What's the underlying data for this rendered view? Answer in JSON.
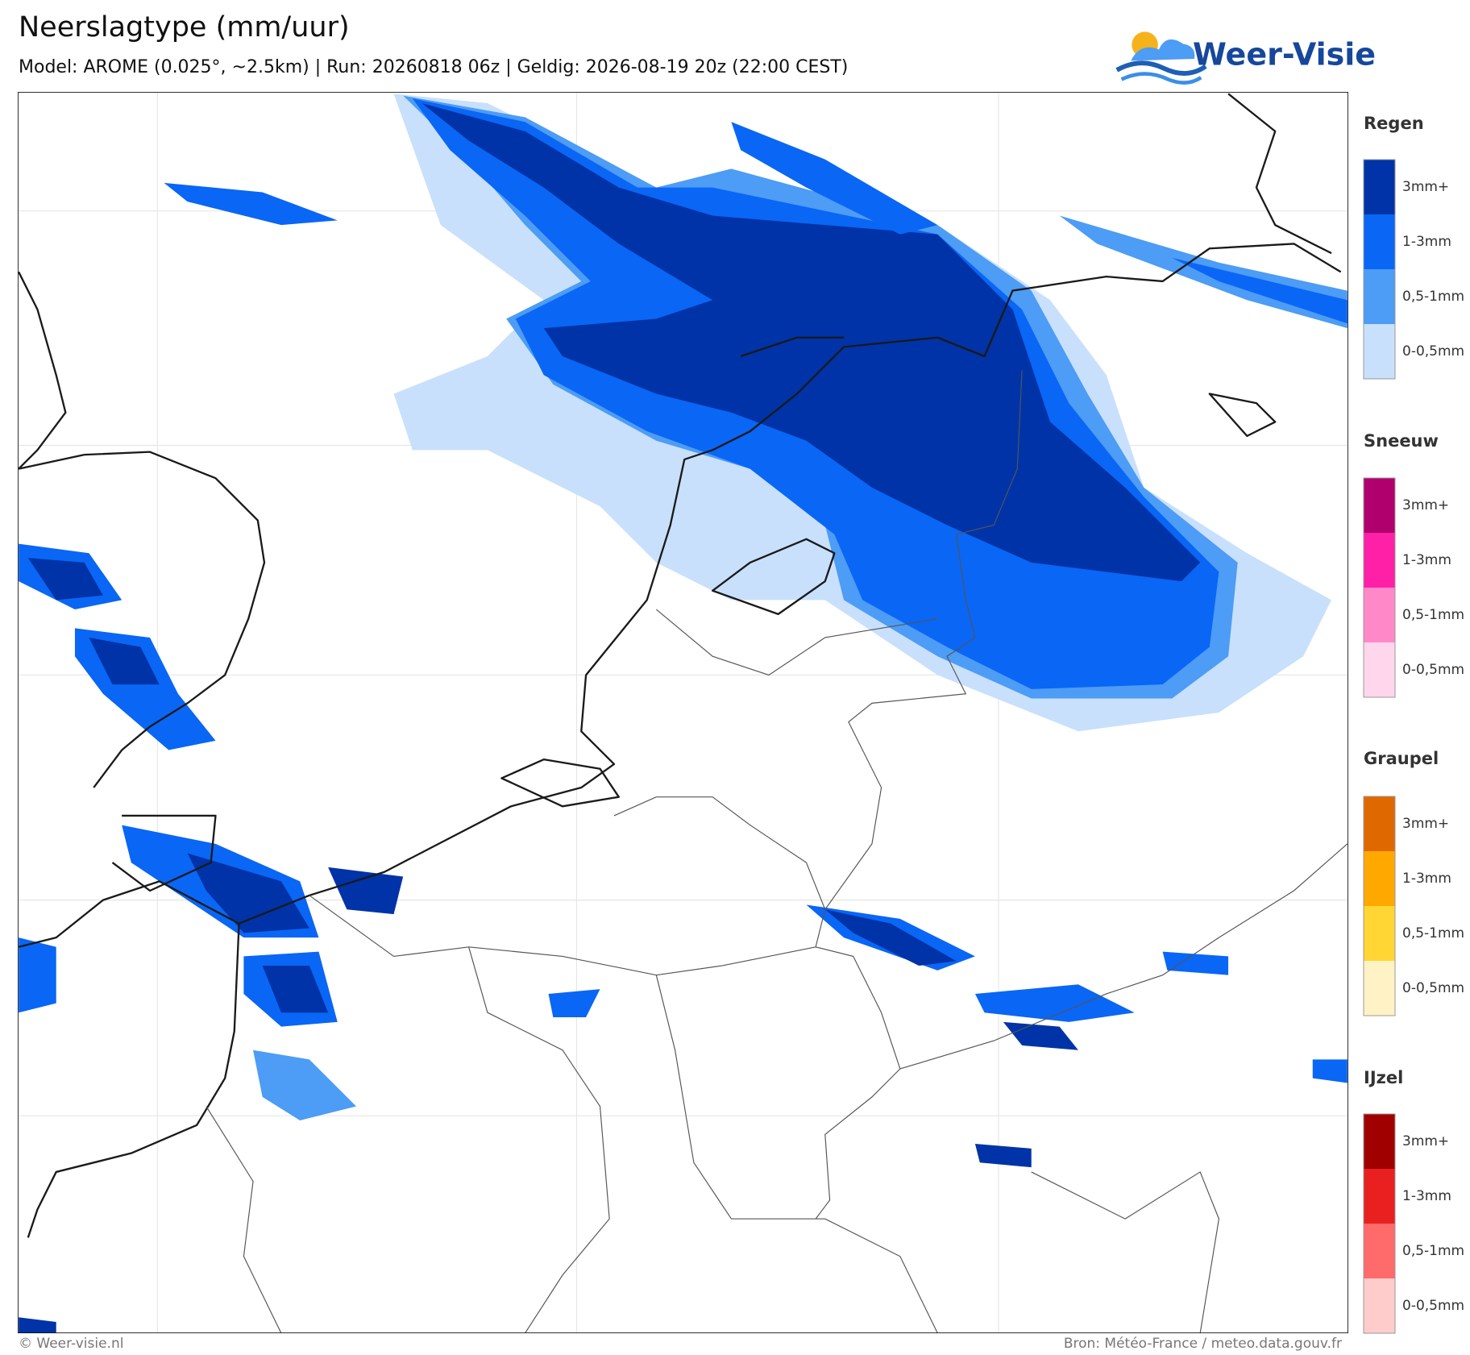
{
  "header": {
    "title": "Neerslagtype (mm/uur)",
    "subtitle": "Model: AROME (0.025°, ~2.5km)  |  Run: 20260818 06z  |  Geldig: 2026-08-19 20z (22:00 CEST)",
    "logo": "Weer-Visie"
  },
  "legend": {
    "groups": [
      {
        "name": "Regen",
        "items": [
          {
            "label": "3mm+",
            "color": "#0033a8"
          },
          {
            "label": "1-3mm",
            "color": "#0a66f5"
          },
          {
            "label": "0,5-1mm",
            "color": "#4d9cf5"
          },
          {
            "label": "0-0,5mm",
            "color": "#c8e0fb"
          }
        ]
      },
      {
        "name": "Sneeuw",
        "items": [
          {
            "label": "3mm+",
            "color": "#b0006e"
          },
          {
            "label": "1-3mm",
            "color": "#ff20a8"
          },
          {
            "label": "0,5-1mm",
            "color": "#ff88c8"
          },
          {
            "label": "0-0,5mm",
            "color": "#ffd6ec"
          }
        ]
      },
      {
        "name": "Graupel",
        "items": [
          {
            "label": "3mm+",
            "color": "#e06800"
          },
          {
            "label": "1-3mm",
            "color": "#ffa800"
          },
          {
            "label": "0,5-1mm",
            "color": "#ffd633"
          },
          {
            "label": "0-0,5mm",
            "color": "#fff2c4"
          }
        ]
      },
      {
        "name": "IJzel",
        "items": [
          {
            "label": "3mm+",
            "color": "#a00000"
          },
          {
            "label": "1-3mm",
            "color": "#e82020"
          },
          {
            "label": "0,5-1mm",
            "color": "#ff6a6a"
          },
          {
            "label": "0-0,5mm",
            "color": "#ffcccc"
          }
        ]
      }
    ]
  },
  "footer": {
    "left": "© Weer-visie.nl",
    "right": "Bron: Météo-France / meteo.data.gouv.fr"
  }
}
